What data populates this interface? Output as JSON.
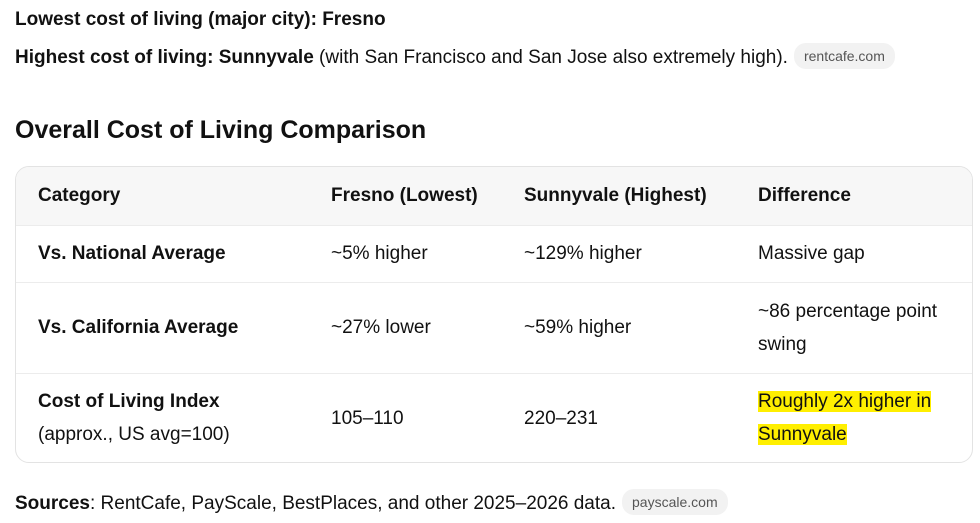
{
  "intro": {
    "line1": "Lowest cost of living (major city): Fresno",
    "line2_bold": "Highest cost of living: Sunnyvale",
    "line2_rest": " (with San Francisco and San Jose also extremely high).",
    "line2_chip": "rentcafe.com"
  },
  "section": {
    "heading": "Overall Cost of Living Comparison"
  },
  "table": {
    "headers": [
      "Category",
      "Fresno (Lowest)",
      "Sunnyvale (Highest)",
      "Difference"
    ],
    "rows": [
      {
        "category": "Vs. National Average",
        "category_sub": "",
        "fresno": "~5% higher",
        "sunnyvale": "~129% higher",
        "difference": "Massive gap"
      },
      {
        "category": "Vs. California Average",
        "category_sub": "",
        "fresno": "~27% lower",
        "sunnyvale": "~59% higher",
        "difference": "~86 percentage point swing"
      },
      {
        "category": "Cost of Living Index",
        "category_sub": "(approx., US avg=100)",
        "fresno": "105–110",
        "sunnyvale": "220–231",
        "difference": "Roughly 2x higher in Sunnyvale"
      }
    ]
  },
  "sources": {
    "label": "Sources",
    "text": ": RentCafe, PayScale, BestPlaces, and other 2025–2026 data.",
    "chip": "payscale.com"
  },
  "colors": {
    "highlight": "#ffef00",
    "chip_bg": "#f2f2f2"
  }
}
